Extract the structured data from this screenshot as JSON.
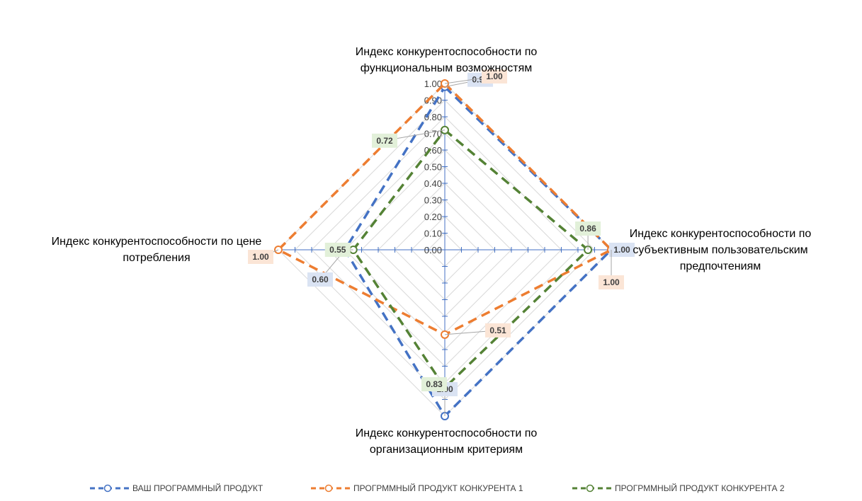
{
  "chart_data": {
    "type": "radar",
    "axes": [
      "Индекс конкурентоспособности по функциональным возможностям",
      "Индекс конкурентоспособности по субъективным пользовательским предпочтениям",
      "Индекс конкурентоспособности по организационным критериям",
      "Индекс конкурентоспособности по цене потребления"
    ],
    "axis_title_lines": [
      [
        "Индекс конкурентоспособности по",
        "функциональным возможностям"
      ],
      [
        "Индекс конкурентоспособности по",
        "субъективным пользовательским",
        "предпочтениям"
      ],
      [
        "Индекс конкурентоспособности по",
        "организационным критериям"
      ],
      [
        "Индекс конкурентоспособности по цене",
        "потребления"
      ]
    ],
    "ticks": [
      "0.00",
      "0.10",
      "0.20",
      "0.30",
      "0.40",
      "0.50",
      "0.60",
      "0.70",
      "0.80",
      "0.90",
      "1.00"
    ],
    "range": [
      0,
      1
    ],
    "series": [
      {
        "name": "ВАШ ПРОГРАММНЫЙ ПРОДУКТ",
        "color": "#4472C4",
        "label_bg": "#DAE3F3",
        "values": [
          0.98,
          1.0,
          1.0,
          0.6
        ],
        "labels": [
          "0.98",
          "1.00",
          "1.00",
          "0.60"
        ]
      },
      {
        "name": "ПРОГРММНЫЙ ПРОДУКТ КОНКУРЕНТА 1",
        "color": "#ED7D31",
        "label_bg": "#FBE5D6",
        "values": [
          1.0,
          1.0,
          0.51,
          1.0
        ],
        "labels": [
          "1.00",
          "1.00",
          "0.51",
          "1.00"
        ]
      },
      {
        "name": "ПРОГРММНЫЙ ПРОДУКТ КОНКУРЕНТА 2",
        "color": "#548235",
        "label_bg": "#E2F0D9",
        "values": [
          0.72,
          0.86,
          0.83,
          0.55
        ],
        "labels": [
          "0.72",
          "0.86",
          "0.83",
          "0.55"
        ]
      }
    ],
    "grid": true,
    "legend": "bottom"
  }
}
